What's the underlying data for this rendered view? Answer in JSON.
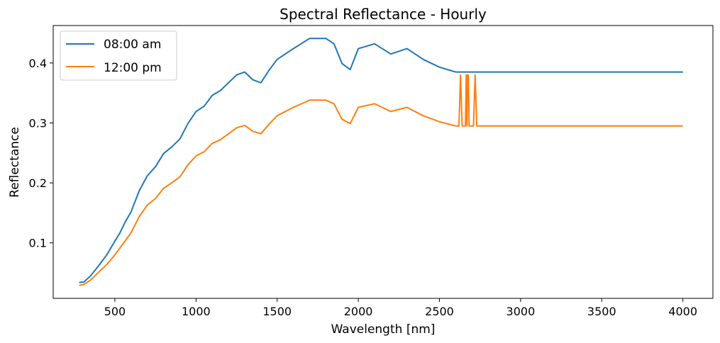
{
  "chart_data": {
    "type": "line",
    "title": "Spectral Reflectance - Hourly",
    "xlabel": "Wavelength [nm]",
    "ylabel": "Reflectance",
    "xlim": [
      120,
      4185
    ],
    "ylim": [
      0.0075,
      0.4625
    ],
    "xticks": [
      500,
      1000,
      1500,
      2000,
      2500,
      3000,
      3500,
      4000
    ],
    "yticks": [
      0.1,
      0.2,
      0.3,
      0.4
    ],
    "xtick_labels": [
      "500",
      "1000",
      "1500",
      "2000",
      "2500",
      "3000",
      "3500",
      "4000"
    ],
    "ytick_labels": [
      "0.1",
      "0.2",
      "0.3",
      "0.4"
    ],
    "grid": false,
    "legend_position": "upper-left",
    "series": [
      {
        "name": "08:00 am",
        "color": "#1f77b4",
        "points": [
          [
            280,
            0.034
          ],
          [
            310,
            0.035
          ],
          [
            350,
            0.045
          ],
          [
            400,
            0.062
          ],
          [
            450,
            0.08
          ],
          [
            500,
            0.103
          ],
          [
            530,
            0.116
          ],
          [
            560,
            0.133
          ],
          [
            600,
            0.152
          ],
          [
            650,
            0.187
          ],
          [
            700,
            0.212
          ],
          [
            750,
            0.227
          ],
          [
            800,
            0.249
          ],
          [
            850,
            0.26
          ],
          [
            900,
            0.273
          ],
          [
            950,
            0.299
          ],
          [
            1000,
            0.319
          ],
          [
            1050,
            0.328
          ],
          [
            1100,
            0.346
          ],
          [
            1150,
            0.354
          ],
          [
            1200,
            0.367
          ],
          [
            1250,
            0.38
          ],
          [
            1300,
            0.385
          ],
          [
            1350,
            0.372
          ],
          [
            1400,
            0.367
          ],
          [
            1450,
            0.388
          ],
          [
            1500,
            0.406
          ],
          [
            1600,
            0.424
          ],
          [
            1700,
            0.441
          ],
          [
            1800,
            0.441
          ],
          [
            1850,
            0.432
          ],
          [
            1900,
            0.399
          ],
          [
            1950,
            0.389
          ],
          [
            2000,
            0.424
          ],
          [
            2100,
            0.432
          ],
          [
            2200,
            0.415
          ],
          [
            2300,
            0.424
          ],
          [
            2400,
            0.406
          ],
          [
            2500,
            0.393
          ],
          [
            2600,
            0.385
          ],
          [
            4000,
            0.385
          ]
        ]
      },
      {
        "name": "12:00 pm",
        "color": "#ff7f0e",
        "points": [
          [
            280,
            0.029
          ],
          [
            310,
            0.031
          ],
          [
            350,
            0.038
          ],
          [
            400,
            0.051
          ],
          [
            450,
            0.064
          ],
          [
            500,
            0.08
          ],
          [
            530,
            0.091
          ],
          [
            560,
            0.102
          ],
          [
            600,
            0.117
          ],
          [
            650,
            0.144
          ],
          [
            700,
            0.163
          ],
          [
            750,
            0.174
          ],
          [
            800,
            0.191
          ],
          [
            850,
            0.2
          ],
          [
            900,
            0.21
          ],
          [
            950,
            0.23
          ],
          [
            1000,
            0.245
          ],
          [
            1050,
            0.252
          ],
          [
            1100,
            0.266
          ],
          [
            1150,
            0.272
          ],
          [
            1200,
            0.282
          ],
          [
            1250,
            0.292
          ],
          [
            1300,
            0.296
          ],
          [
            1350,
            0.286
          ],
          [
            1400,
            0.282
          ],
          [
            1450,
            0.298
          ],
          [
            1500,
            0.312
          ],
          [
            1600,
            0.326
          ],
          [
            1700,
            0.338
          ],
          [
            1800,
            0.338
          ],
          [
            1850,
            0.332
          ],
          [
            1900,
            0.306
          ],
          [
            1950,
            0.299
          ],
          [
            2000,
            0.326
          ],
          [
            2100,
            0.332
          ],
          [
            2200,
            0.319
          ],
          [
            2300,
            0.326
          ],
          [
            2400,
            0.312
          ],
          [
            2500,
            0.302
          ],
          [
            2600,
            0.295
          ],
          [
            2620,
            0.295
          ],
          [
            2630,
            0.38
          ],
          [
            2640,
            0.295
          ],
          [
            2660,
            0.295
          ],
          [
            2665,
            0.38
          ],
          [
            2670,
            0.295
          ],
          [
            2672,
            0.38
          ],
          [
            2678,
            0.38
          ],
          [
            2683,
            0.295
          ],
          [
            2710,
            0.295
          ],
          [
            2720,
            0.38
          ],
          [
            2730,
            0.295
          ],
          [
            4000,
            0.295
          ]
        ]
      }
    ]
  }
}
